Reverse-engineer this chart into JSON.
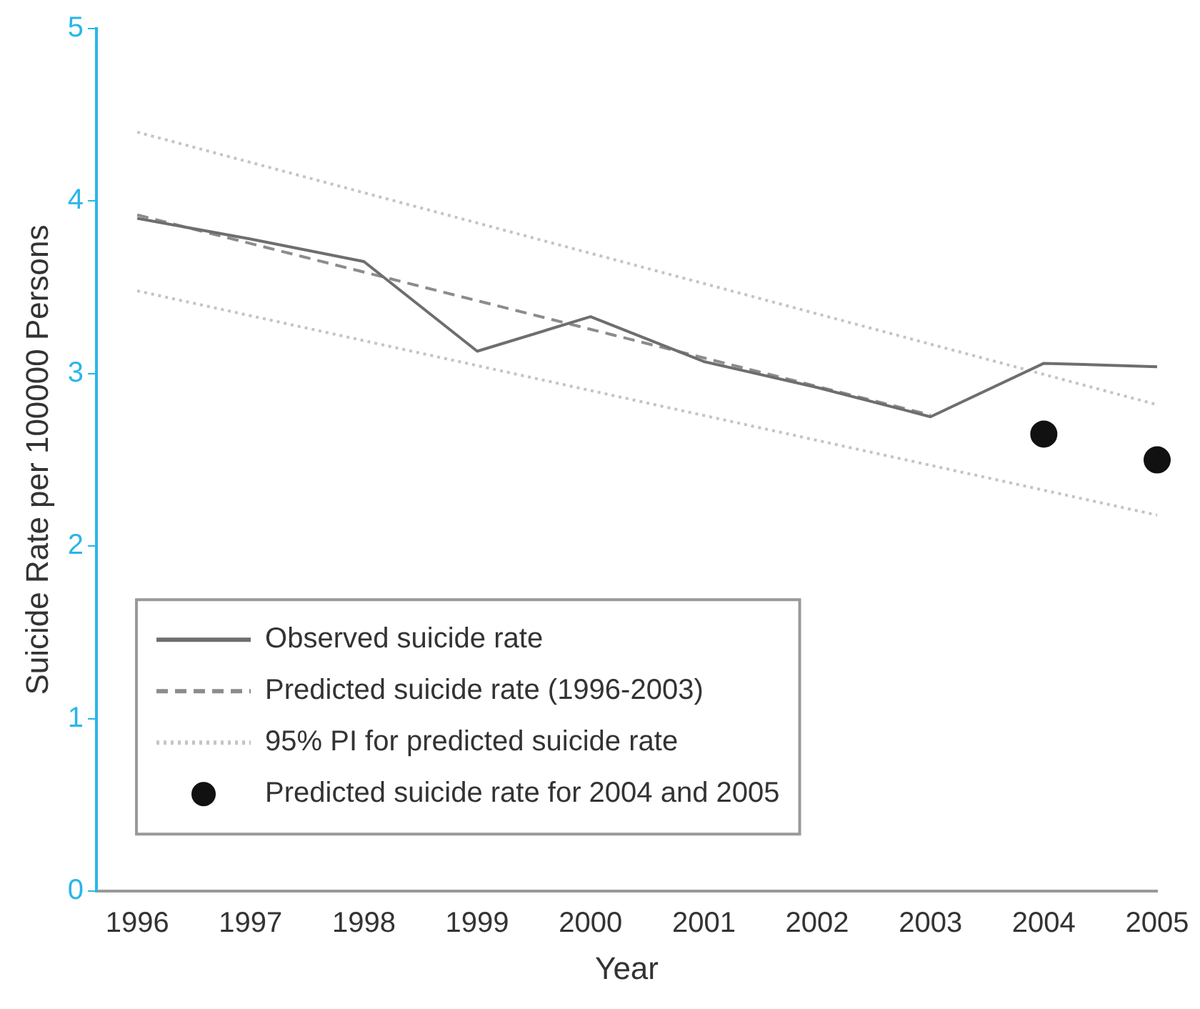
{
  "chart_data": {
    "type": "line",
    "xlabel": "Year",
    "ylabel": "Suicide Rate per 100000 Persons",
    "xlim": [
      1995.64,
      2005
    ],
    "xticks": [
      1996,
      1997,
      1998,
      1999,
      2000,
      2001,
      2002,
      2003,
      2004,
      2005
    ],
    "ylim": [
      0,
      5
    ],
    "yticks": [
      0,
      1,
      2,
      3,
      4,
      5
    ],
    "grid": false,
    "legend": "bottom left",
    "marker": "none",
    "series": [
      {
        "name": "Observed suicide rate",
        "type": "line",
        "line_style": "solid",
        "color": "#6e6e6e",
        "x": [
          1996,
          1997,
          1998,
          1999,
          2000,
          2001,
          2002,
          2003,
          2004,
          2005
        ],
        "values": [
          3.9,
          3.78,
          3.65,
          3.13,
          3.33,
          3.07,
          2.92,
          2.75,
          3.06,
          3.04
        ]
      },
      {
        "name": "Predicted suicide rate (1996-2003)",
        "type": "line",
        "line_style": "dashed",
        "color": "#8c8c8c",
        "x": [
          1996,
          2003
        ],
        "values": [
          3.92,
          2.76
        ]
      },
      {
        "name": "95% PI for predicted suicide rate",
        "type": "line",
        "line_style": "dotted",
        "color": "#c4c4c4",
        "x": [
          1996,
          2005
        ],
        "values": [
          4.4,
          2.82
        ]
      },
      {
        "type": "line",
        "line_style": "dotted",
        "color": "#c4c4c4",
        "x": [
          1996,
          2005
        ],
        "values": [
          3.48,
          2.18
        ]
      },
      {
        "name": "Predicted suicide rate for 2004 and 2005",
        "type": "scatter",
        "marker": "circle",
        "color": "#111111",
        "x": [
          2004,
          2005
        ],
        "values": [
          2.65,
          2.5
        ]
      }
    ]
  }
}
